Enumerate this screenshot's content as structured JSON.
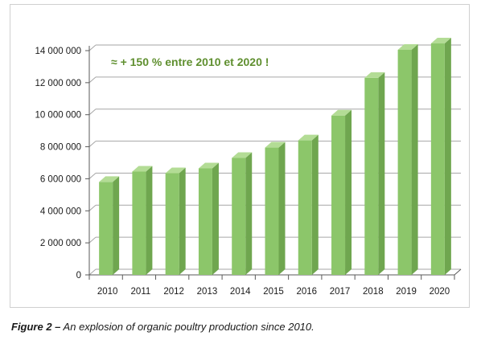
{
  "chart_data": {
    "type": "bar",
    "style": "3d",
    "categories": [
      "2010",
      "2011",
      "2012",
      "2013",
      "2014",
      "2015",
      "2016",
      "2017",
      "2018",
      "2019",
      "2020"
    ],
    "values": [
      5800000,
      6450000,
      6350000,
      6650000,
      7300000,
      7950000,
      8400000,
      9950000,
      12300000,
      14050000,
      14450000
    ],
    "ylim": [
      0,
      14000000
    ],
    "yticks": [
      0,
      2000000,
      4000000,
      6000000,
      8000000,
      10000000,
      12000000,
      14000000
    ],
    "ytick_labels": [
      "0",
      "2 000 000",
      "4 000 000",
      "6 000 000",
      "8 000 000",
      "10 000 000",
      "12 000 000",
      "14 000 000"
    ],
    "grid": true,
    "annotation": "≈ + 150 % entre 2010 et 2020 !",
    "colors": {
      "bar_front": "#8cc66a",
      "bar_side": "#6fa64f",
      "bar_top": "#b3dc95",
      "annotation": "#5f8f2f",
      "grid": "#a6a6a6"
    }
  },
  "caption": {
    "label": "Figure 2 –",
    "text": " An explosion of organic poultry production since 2010."
  }
}
